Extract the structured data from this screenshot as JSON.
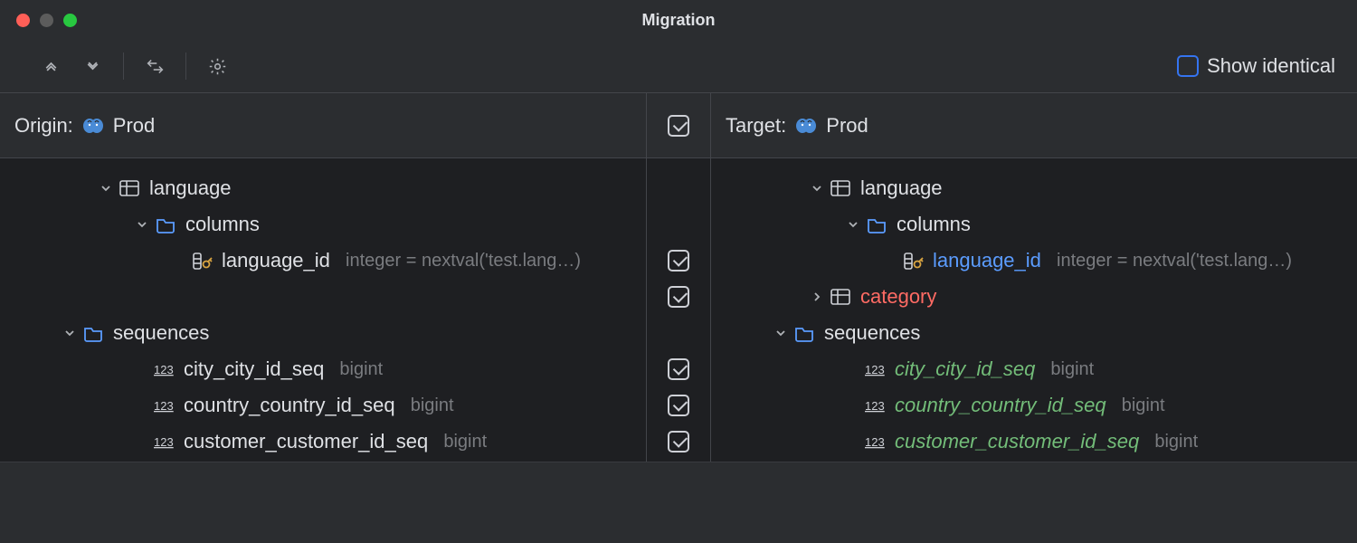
{
  "window": {
    "title": "Migration"
  },
  "toolbar": {
    "show_identical_label": "Show identical",
    "show_identical_checked": false
  },
  "origin": {
    "label": "Origin:",
    "db_name": "Prod",
    "tree": [
      {
        "indent": 90,
        "chev": "down",
        "icon": "table",
        "text": "language",
        "cls": ""
      },
      {
        "indent": 130,
        "chev": "down",
        "icon": "folder",
        "text": "columns",
        "cls": ""
      },
      {
        "indent": 170,
        "chev": "",
        "icon": "column-pk",
        "text": "language_id",
        "cls": "",
        "detail": "integer = nextval('test.lang…)"
      },
      {
        "indent": 0,
        "chev": "",
        "icon": "",
        "text": "",
        "cls": ""
      },
      {
        "indent": 50,
        "chev": "down",
        "icon": "folder",
        "text": "sequences",
        "cls": ""
      },
      {
        "indent": 128,
        "chev": "",
        "icon": "seq",
        "text": "city_city_id_seq",
        "cls": "",
        "detail": "bigint"
      },
      {
        "indent": 128,
        "chev": "",
        "icon": "seq",
        "text": "country_country_id_seq",
        "cls": "",
        "detail": "bigint"
      },
      {
        "indent": 128,
        "chev": "",
        "icon": "seq",
        "text": "customer_customer_id_seq",
        "cls": "",
        "detail": "bigint"
      }
    ]
  },
  "center": {
    "header_checked": true,
    "rows": [
      false,
      false,
      true,
      true,
      false,
      true,
      true,
      true
    ]
  },
  "target": {
    "label": "Target:",
    "db_name": "Prod",
    "tree": [
      {
        "indent": 90,
        "chev": "down",
        "icon": "table",
        "text": "language",
        "cls": ""
      },
      {
        "indent": 130,
        "chev": "down",
        "icon": "folder",
        "text": "columns",
        "cls": ""
      },
      {
        "indent": 170,
        "chev": "",
        "icon": "column-pk",
        "text": "language_id",
        "cls": "diff-mod",
        "detail": "integer = nextval('test.lang…)"
      },
      {
        "indent": 90,
        "chev": "right",
        "icon": "table",
        "text": "category",
        "cls": "diff-added"
      },
      {
        "indent": 50,
        "chev": "down",
        "icon": "folder",
        "text": "sequences",
        "cls": ""
      },
      {
        "indent": 128,
        "chev": "",
        "icon": "seq",
        "text": "city_city_id_seq",
        "cls": "diff-new",
        "detail": "bigint"
      },
      {
        "indent": 128,
        "chev": "",
        "icon": "seq",
        "text": "country_country_id_seq",
        "cls": "diff-new",
        "detail": "bigint"
      },
      {
        "indent": 128,
        "chev": "",
        "icon": "seq",
        "text": "customer_customer_id_seq",
        "cls": "diff-new",
        "detail": "bigint"
      }
    ]
  },
  "colors": {
    "bg": "#2b2d30",
    "tree_bg": "#1e1f22",
    "border": "#43454a",
    "text": "#dfe1e5",
    "muted": "#7a7c80",
    "accent": "#3574f0",
    "added": "#ff6b64",
    "modified": "#5b9cff",
    "new": "#73bd79"
  }
}
